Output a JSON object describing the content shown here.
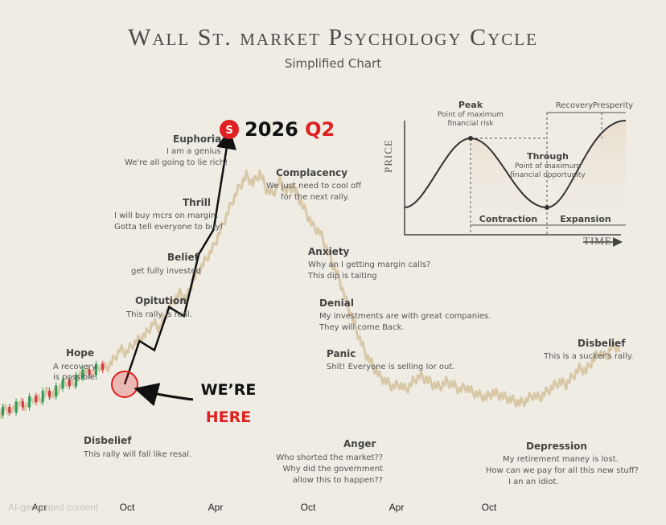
{
  "header": {
    "title": "Wall St. market Psychology Cycle",
    "subtitle": "Simplified Chart"
  },
  "callouts": {
    "target_icon": "S",
    "target_year": "2026",
    "target_quarter": "Q2",
    "were": "WE’RE",
    "here": "HERE"
  },
  "watermark": "AI-generated content",
  "phases": [
    {
      "name": "Hope",
      "text": [
        "A recovery",
        "is possible."
      ]
    },
    {
      "name": "Opitution",
      "text": [
        "This rally is real."
      ]
    },
    {
      "name": "Belief",
      "text": [
        "get fully invested"
      ]
    },
    {
      "name": "Thrill",
      "text": [
        "I will buy mcrs on margin.",
        "Gotta tell everyone to buy!"
      ]
    },
    {
      "name": "Euphoria",
      "text": [
        "I am a genius",
        "We're all going to lie rich!"
      ]
    },
    {
      "name": "Complacency",
      "text": [
        "We just need to cool off",
        "for the next rally."
      ]
    },
    {
      "name": "Anxiety",
      "text": [
        "Why an I getting margin calls?",
        "This dip is taiting"
      ]
    },
    {
      "name": "Denial",
      "text": [
        "My investments are with great companies.",
        "They will come Back."
      ]
    },
    {
      "name": "Panic",
      "text": [
        "Shit! Everyone is selling Ior out."
      ]
    },
    {
      "name": "Anger",
      "text": [
        "Who shorted the market??",
        "Why did the government",
        "allow this to happen??"
      ]
    },
    {
      "name": "Depression",
      "text": [
        "My retirement maney is lost.",
        "How can we pay for all this new stuff?",
        "I an an idiot."
      ]
    },
    {
      "name": "Disbelief",
      "text": [
        "This is a sucker's rally."
      ]
    },
    {
      "name": "Disbelief",
      "text": [
        "This rally will fall like resal."
      ]
    }
  ],
  "inset": {
    "ylabel": "PRICE",
    "xlabel": "TIME",
    "peak": {
      "name": "Peak",
      "text": [
        "Point of maximum",
        "financial risk"
      ]
    },
    "trough": {
      "name": "Through",
      "text": [
        "Point of maximum",
        "financial opportunity"
      ]
    },
    "contraction": "Contraction",
    "expansion": "Expansion",
    "recovery": "Recovery",
    "prosperity": "Presperity"
  },
  "colors": {
    "background": "#efece4",
    "price_line": "#d8c8a8",
    "candle_up": "#2e9a5a",
    "candle_down": "#d83040",
    "accent_red": "#e02020",
    "arrow": "#111111"
  },
  "chart_data": {
    "type": "line",
    "title": "Wall St. market Psychology Cycle",
    "subtitle": "Simplified Chart",
    "x_ticks": [
      "Apr",
      "Oct",
      "Apr",
      "Oct",
      "Apr",
      "Oct"
    ],
    "series": [
      {
        "values": [
          10,
          12,
          11,
          14,
          13,
          16,
          15,
          18,
          17,
          20,
          22,
          21,
          24,
          26,
          25,
          28,
          27,
          30,
          34,
          33,
          36,
          38,
          40,
          44,
          42,
          48,
          52,
          55,
          53,
          60,
          64,
          68,
          72,
          78,
          84,
          90,
          95,
          99,
          96,
          100,
          94,
          92,
          97,
          93,
          95,
          90,
          85,
          80,
          78,
          72,
          66,
          60,
          52,
          45,
          38,
          32,
          28,
          24,
          22,
          20,
          21,
          19,
          22,
          24,
          23,
          21,
          20,
          22,
          21,
          19,
          20,
          18,
          17,
          16,
          18,
          17,
          16,
          15,
          14,
          15,
          17,
          16,
          18,
          20,
          22,
          21,
          24,
          27,
          26,
          30,
          33,
          31,
          36,
          34
        ]
      }
    ],
    "projection": {
      "values": [
        20,
        34,
        31,
        45,
        42,
        62,
        70,
        100
      ]
    },
    "ylim": [
      0,
      100
    ]
  }
}
